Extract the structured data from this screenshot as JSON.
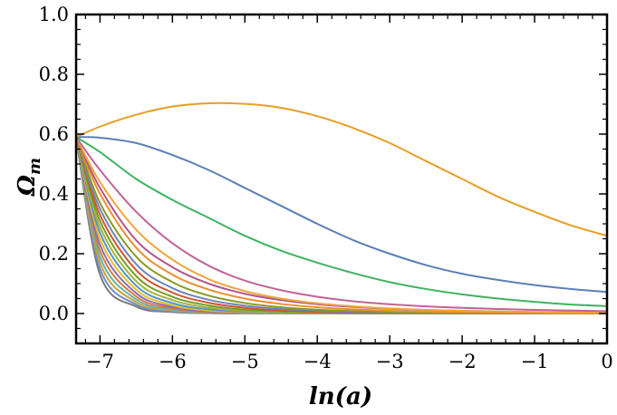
{
  "chart_data": {
    "type": "line",
    "title": "",
    "xlabel": "ln(a)",
    "ylabel": "Ω_m",
    "ylabel_main": "Ω",
    "ylabel_sub": "m",
    "xlim": [
      -7.33,
      0
    ],
    "ylim": [
      -0.1,
      1.0
    ],
    "x_ticks": [
      -7,
      -6,
      -5,
      -4,
      -3,
      -2,
      -1,
      0
    ],
    "x_tick_labels": [
      "−7",
      "−6",
      "−5",
      "−4",
      "−3",
      "−2",
      "−1",
      "0"
    ],
    "y_ticks": [
      0.0,
      0.2,
      0.4,
      0.6,
      0.8,
      1.0
    ],
    "y_tick_labels": [
      "0.0",
      "0.2",
      "0.4",
      "0.6",
      "0.8",
      "1.0"
    ],
    "grid": false,
    "legend": "none",
    "series": [
      {
        "color": "#e69f25",
        "x": [
          -7.33,
          -7,
          -6.5,
          -6,
          -5.5,
          -5,
          -4.5,
          -4,
          -3.5,
          -3,
          -2.5,
          -2,
          -1.5,
          -1,
          -0.5,
          0
        ],
        "y": [
          0.59,
          0.625,
          0.665,
          0.692,
          0.703,
          0.701,
          0.688,
          0.66,
          0.62,
          0.57,
          0.51,
          0.45,
          0.39,
          0.34,
          0.295,
          0.26
        ]
      },
      {
        "color": "#5b7fb6",
        "x": [
          -7.33,
          -7,
          -6.5,
          -6,
          -5.5,
          -5,
          -4.5,
          -4,
          -3.5,
          -3,
          -2.5,
          -2,
          -1.5,
          -1,
          -0.5,
          0
        ],
        "y": [
          0.59,
          0.588,
          0.57,
          0.53,
          0.48,
          0.42,
          0.36,
          0.3,
          0.245,
          0.2,
          0.162,
          0.133,
          0.112,
          0.095,
          0.082,
          0.072
        ]
      },
      {
        "color": "#3fb261",
        "x": [
          -7.33,
          -7,
          -6.5,
          -6,
          -5.5,
          -5,
          -4.5,
          -4,
          -3.5,
          -3,
          -2.5,
          -2,
          -1.5,
          -1,
          -0.5,
          0
        ],
        "y": [
          0.59,
          0.54,
          0.45,
          0.38,
          0.32,
          0.26,
          0.21,
          0.17,
          0.135,
          0.105,
          0.082,
          0.064,
          0.05,
          0.039,
          0.03,
          0.025
        ]
      },
      {
        "color": "#c06496",
        "x": [
          -7.33,
          -7,
          -6.5,
          -6,
          -5.5,
          -5,
          -4.5,
          -4,
          -3.5,
          -3,
          -2.5,
          -2,
          -1.5,
          -1,
          -0.5,
          0
        ],
        "y": [
          0.59,
          0.48,
          0.34,
          0.235,
          0.16,
          0.11,
          0.078,
          0.056,
          0.041,
          0.031,
          0.024,
          0.019,
          0.015,
          0.012,
          0.01,
          0.008
        ]
      },
      {
        "color": "#f0a53a",
        "x": [
          -7.33,
          -7,
          -6.5,
          -6,
          -5.5,
          -5,
          -4.5,
          -4,
          -3.5,
          -3,
          -2.5,
          -2,
          -1.5,
          -1,
          -0.5,
          0
        ],
        "y": [
          0.59,
          0.44,
          0.28,
          0.18,
          0.115,
          0.075,
          0.05,
          0.034,
          0.024,
          0.017,
          0.012,
          0.009,
          0.007,
          0.005,
          0.004,
          0.003
        ]
      },
      {
        "color": "#b0568e",
        "x": [
          -7.33,
          -7,
          -6.5,
          -6,
          -5.5,
          -5,
          -4.5,
          -4,
          -3.5,
          -3,
          -2.5,
          -2,
          -1.5,
          -1,
          -0.5,
          0
        ],
        "y": [
          0.59,
          0.42,
          0.245,
          0.155,
          0.1,
          0.066,
          0.045,
          0.031,
          0.022,
          0.016,
          0.012,
          0.009,
          0.007,
          0.005,
          0.004,
          0.003
        ]
      },
      {
        "color": "#eb8e2f",
        "x": [
          -7.33,
          -7,
          -6.5,
          -6,
          -5.5,
          -5,
          -4.5,
          -4,
          -3.5,
          -3,
          -2.5,
          -2,
          -1.5,
          -1,
          -0.5,
          0
        ],
        "y": [
          0.59,
          0.4,
          0.22,
          0.13,
          0.08,
          0.05,
          0.032,
          0.021,
          0.014,
          0.009,
          0.006,
          0.004,
          0.003,
          0.002,
          0.001,
          0.001
        ]
      },
      {
        "color": "#8a9a1e",
        "x": [
          -7.33,
          -7,
          -6.5,
          -6,
          -5.5,
          -5,
          -4.5,
          -4,
          -3.5,
          -3,
          -2.5,
          -2,
          -1.5,
          -1,
          -0.5,
          0
        ],
        "y": [
          0.59,
          0.37,
          0.19,
          0.105,
          0.06,
          0.035,
          0.021,
          0.013,
          0.008,
          0.005,
          0.003,
          0.002,
          0.001,
          0.001,
          0.0,
          0.0
        ]
      },
      {
        "color": "#6a86c0",
        "x": [
          -7.33,
          -7,
          -6.5,
          -6,
          -5.5,
          -5,
          -4.5,
          -4,
          -3.5,
          -3,
          -2.5,
          -2,
          -1.5,
          -1,
          -0.5,
          0
        ],
        "y": [
          0.59,
          0.35,
          0.165,
          0.085,
          0.046,
          0.026,
          0.015,
          0.009,
          0.005,
          0.003,
          0.002,
          0.001,
          0.001,
          0.0,
          0.0,
          0.0
        ]
      },
      {
        "color": "#d3542d",
        "x": [
          -7.33,
          -7,
          -6.5,
          -6,
          -5.5,
          -5,
          -4.5,
          -4,
          -3.5,
          -3,
          -2.5,
          -2,
          -1.5,
          -1,
          -0.5,
          0
        ],
        "y": [
          0.59,
          0.33,
          0.145,
          0.07,
          0.036,
          0.019,
          0.01,
          0.006,
          0.003,
          0.002,
          0.001,
          0.001,
          0.0,
          0.0,
          0.0,
          0.0
        ]
      },
      {
        "color": "#7b9b2a",
        "x": [
          -7.33,
          -7,
          -6.5,
          -6,
          -5.5,
          -5,
          -4.5,
          -4,
          -3.5,
          -3,
          -2.5,
          -2,
          -1.5,
          -1,
          -0.5,
          0
        ],
        "y": [
          0.59,
          0.31,
          0.125,
          0.056,
          0.027,
          0.013,
          0.007,
          0.004,
          0.002,
          0.001,
          0.001,
          0.0,
          0.0,
          0.0,
          0.0,
          0.0
        ]
      },
      {
        "color": "#a3b43a",
        "x": [
          -7.33,
          -7,
          -6.5,
          -6,
          -5.5,
          -5,
          -4.5,
          -4,
          -3.5,
          -3,
          -2.5,
          -2,
          -1.5,
          -1,
          -0.5,
          0
        ],
        "y": [
          0.59,
          0.29,
          0.108,
          0.045,
          0.02,
          0.009,
          0.004,
          0.002,
          0.001,
          0.0,
          0.0,
          0.0,
          0.0,
          0.0,
          0.0,
          0.0
        ]
      },
      {
        "color": "#4f95c9",
        "x": [
          -7.33,
          -7,
          -6.5,
          -6,
          -5.5,
          -5,
          -4.5,
          -4,
          -3.5,
          -3,
          -2.5,
          -2,
          -1.5,
          -1,
          -0.5,
          0
        ],
        "y": [
          0.59,
          0.27,
          0.093,
          0.035,
          0.014,
          0.006,
          0.003,
          0.001,
          0.0,
          0.0,
          0.0,
          0.0,
          0.0,
          0.0,
          0.0,
          0.0
        ]
      },
      {
        "color": "#e9bd28",
        "x": [
          -7.33,
          -7,
          -6.5,
          -6,
          -5.5,
          -5,
          -4.5,
          -4,
          -3.5,
          -3,
          -2.5,
          -2,
          -1.5,
          -1,
          -0.5,
          0
        ],
        "y": [
          0.59,
          0.25,
          0.08,
          0.028,
          0.01,
          0.004,
          0.002,
          0.001,
          0.0,
          0.0,
          0.0,
          0.0,
          0.0,
          0.0,
          0.0,
          0.0
        ]
      },
      {
        "color": "#8f6bb8",
        "x": [
          -7.33,
          -7,
          -6.5,
          -6,
          -5.5,
          -5,
          -4.5,
          -4,
          -3.5,
          -3,
          -2.5,
          -2,
          -1.5,
          -1,
          -0.5,
          0
        ],
        "y": [
          0.59,
          0.23,
          0.068,
          0.022,
          0.007,
          0.003,
          0.001,
          0.0,
          0.0,
          0.0,
          0.0,
          0.0,
          0.0,
          0.0,
          0.0,
          0.0
        ]
      },
      {
        "color": "#d77a3c",
        "x": [
          -7.33,
          -7,
          -6.5,
          -6,
          -5.5,
          -5,
          -4.5,
          -4,
          -3.5,
          -3,
          -2.5,
          -2,
          -1.5,
          -1,
          -0.5,
          0
        ],
        "y": [
          0.59,
          0.21,
          0.057,
          0.017,
          0.005,
          0.002,
          0.001,
          0.0,
          0.0,
          0.0,
          0.0,
          0.0,
          0.0,
          0.0,
          0.0,
          0.0
        ]
      },
      {
        "color": "#5fb3a8",
        "x": [
          -7.33,
          -7,
          -6.5,
          -6,
          -5.5,
          -5,
          -4.5,
          -4,
          -3.5,
          -3,
          -2.5,
          -2,
          -1.5,
          -1,
          -0.5,
          0
        ],
        "y": [
          0.59,
          0.19,
          0.047,
          0.013,
          0.004,
          0.001,
          0.0,
          0.0,
          0.0,
          0.0,
          0.0,
          0.0,
          0.0,
          0.0,
          0.0,
          0.0
        ]
      },
      {
        "color": "#c9a23a",
        "x": [
          -7.33,
          -7,
          -6.5,
          -6,
          -5.5,
          -5,
          -4.5,
          -4,
          -3.5,
          -3,
          -2.5,
          -2,
          -1.5,
          -1,
          -0.5,
          0
        ],
        "y": [
          0.59,
          0.17,
          0.038,
          0.01,
          0.003,
          0.001,
          0.0,
          0.0,
          0.0,
          0.0,
          0.0,
          0.0,
          0.0,
          0.0,
          0.0,
          0.0
        ]
      },
      {
        "color": "#6f8fc9",
        "x": [
          -7.33,
          -7,
          -6.5,
          -6,
          -5.5,
          -5,
          -4.5,
          -4,
          -3.5,
          -3,
          -2.5,
          -2,
          -1.5,
          -1,
          -0.5,
          0
        ],
        "y": [
          0.59,
          0.15,
          0.03,
          0.007,
          0.002,
          0.0,
          0.0,
          0.0,
          0.0,
          0.0,
          0.0,
          0.0,
          0.0,
          0.0,
          0.0,
          0.0
        ]
      },
      {
        "color": "#7a7a7a",
        "x": [
          -7.33,
          -7,
          -6.5,
          -6,
          -5.5,
          -5,
          -4.5,
          -4,
          -3.5,
          -3,
          -2.5,
          -2,
          -1.5,
          -1,
          -0.5,
          0
        ],
        "y": [
          0.59,
          0.13,
          0.023,
          0.005,
          0.001,
          0.0,
          0.0,
          0.0,
          0.0,
          0.0,
          0.0,
          0.0,
          0.0,
          0.0,
          0.0,
          0.0
        ]
      }
    ]
  }
}
